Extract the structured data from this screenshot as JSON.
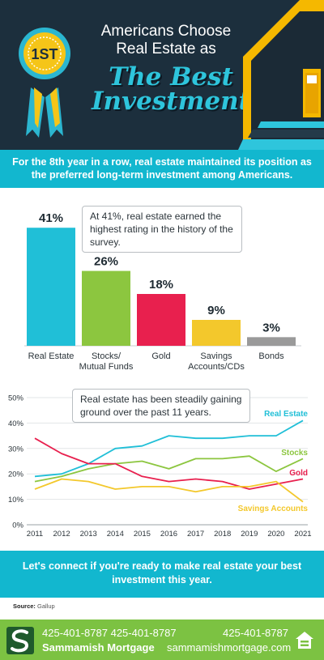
{
  "hero": {
    "rank_label": "1ST",
    "title_line1": "Americans Choose",
    "title_line2": "Real Estate as",
    "highlight_line1": "The Best",
    "highlight_line2": "Investment",
    "colors": {
      "navy": "#1c2f3d",
      "accent": "#2ec5dc",
      "ribbon_gold": "#f5c518",
      "ribbon_blue": "#2bb6d0",
      "house_yellow": "#f5b800"
    }
  },
  "subhead": "For the 8th year in a row, real estate maintained its position as the preferred long-term investment among Americans.",
  "bar_callout": "At 41%, real estate earned the highest rating in the history of the survey.",
  "line_callout": "Real estate has been steadily gaining ground over the past 11 years.",
  "chart_data": [
    {
      "type": "bar",
      "categories": [
        "Real Estate",
        "Stocks/\nMutual Funds",
        "Gold",
        "Savings\nAccounts/CDs",
        "Bonds"
      ],
      "values": [
        41,
        26,
        18,
        9,
        3
      ],
      "value_labels": [
        "41%",
        "26%",
        "18%",
        "9%",
        "3%"
      ],
      "colors": [
        "#20bfd7",
        "#8cc63f",
        "#e8204e",
        "#f3c82c",
        "#9a9a9a"
      ],
      "ylim": [
        0,
        45
      ]
    },
    {
      "type": "line",
      "x": [
        2011,
        2012,
        2013,
        2014,
        2015,
        2016,
        2017,
        2018,
        2019,
        2020,
        2021
      ],
      "ylim": [
        0,
        50
      ],
      "yticks": [
        "0%",
        "10%",
        "20%",
        "30%",
        "40%",
        "50%"
      ],
      "grid": true,
      "series": [
        {
          "name": "Real Estate",
          "color": "#20bfd7",
          "values": [
            19,
            20,
            24,
            30,
            31,
            35,
            34,
            34,
            35,
            35,
            41
          ]
        },
        {
          "name": "Stocks",
          "color": "#8cc63f",
          "values": [
            17,
            19,
            22,
            24,
            25,
            22,
            26,
            26,
            27,
            21,
            26
          ]
        },
        {
          "name": "Gold",
          "color": "#e8204e",
          "values": [
            34,
            28,
            24,
            24,
            19,
            17,
            18,
            17,
            14,
            16,
            18
          ]
        },
        {
          "name": "Savings Accounts",
          "color": "#f3c82c",
          "values": [
            14,
            18,
            17,
            14,
            15,
            15,
            13,
            15,
            15,
            17,
            9
          ]
        }
      ]
    }
  ],
  "cta": "Let's connect if you're ready to make real estate your best investment this year.",
  "source_label": "Source:",
  "source_value": "Gallup",
  "footer": {
    "phone_1": "425-401-8787",
    "phone_2": "425-401-8787",
    "phone_3": "425-401-8787",
    "company": "Sammamish Mortgage",
    "website": "sammamishmortgage.com",
    "logo_icon": "s-logo-icon",
    "eho_icon": "equal-housing-icon"
  }
}
